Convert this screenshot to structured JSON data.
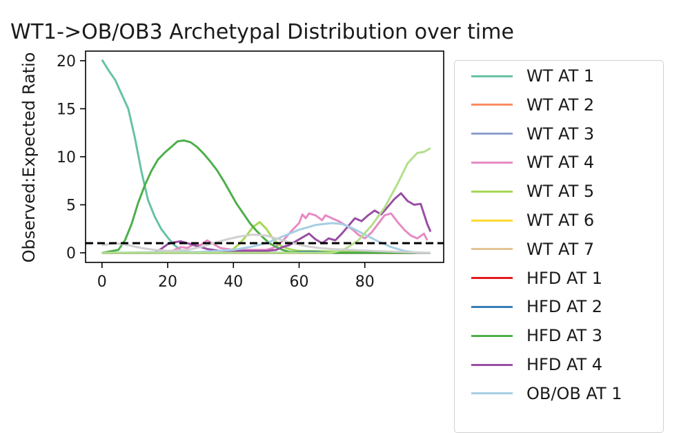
{
  "chart_data": {
    "type": "line",
    "title": "WT1->OB/OB3 Archetypal Distribution over time",
    "xlabel": "",
    "ylabel": "Observed:Expected Ratio",
    "xlim": [
      -5,
      104
    ],
    "ylim": [
      -1,
      21
    ],
    "xticks": [
      0,
      20,
      40,
      60,
      80
    ],
    "yticks": [
      0,
      5,
      10,
      15,
      20
    ],
    "reference_line": {
      "y": 1,
      "style": "dashed",
      "color": "#000000"
    },
    "legend_position": "outside right",
    "x_step": 1,
    "series": [
      {
        "name": "WT AT 1",
        "color": "#66c2a5",
        "points": [
          [
            0,
            20.1
          ],
          [
            2,
            19
          ],
          [
            4,
            18
          ],
          [
            6,
            16.5
          ],
          [
            8,
            15
          ],
          [
            10,
            12
          ],
          [
            12,
            8.5
          ],
          [
            14,
            5.5
          ],
          [
            16,
            3.8
          ],
          [
            18,
            2.5
          ],
          [
            20,
            1.6
          ],
          [
            22,
            0.8
          ],
          [
            24,
            0.3
          ],
          [
            26,
            0.1
          ],
          [
            30,
            0
          ],
          [
            100,
            0
          ]
        ]
      },
      {
        "name": "WT AT 2",
        "color": "#fc8d62",
        "points": [
          [
            0,
            0
          ],
          [
            100,
            0
          ]
        ]
      },
      {
        "name": "WT AT 3",
        "color": "#8da0cb",
        "points": [
          [
            0,
            0
          ],
          [
            100,
            0
          ]
        ]
      },
      {
        "name": "WT AT 4",
        "color": "#e78ac3",
        "points": [
          [
            0,
            0
          ],
          [
            20,
            0
          ],
          [
            22,
            0.3
          ],
          [
            24,
            0.6
          ],
          [
            26,
            0.5
          ],
          [
            28,
            0.9
          ],
          [
            30,
            0.8
          ],
          [
            32,
            1.3
          ],
          [
            34,
            0.9
          ],
          [
            36,
            0.5
          ],
          [
            38,
            0.4
          ],
          [
            40,
            0.3
          ],
          [
            50,
            0.3
          ],
          [
            52,
            0.5
          ],
          [
            54,
            0.9
          ],
          [
            56,
            1.6
          ],
          [
            58,
            2.4
          ],
          [
            60,
            3.1
          ],
          [
            61,
            4.0
          ],
          [
            62,
            3.6
          ],
          [
            63,
            4.1
          ],
          [
            65,
            3.9
          ],
          [
            67,
            3.4
          ],
          [
            68,
            3.9
          ],
          [
            70,
            3.6
          ],
          [
            72,
            3.3
          ],
          [
            74,
            2.9
          ],
          [
            76,
            2.5
          ],
          [
            78,
            1.9
          ],
          [
            80,
            1.5
          ],
          [
            82,
            2.1
          ],
          [
            84,
            3.0
          ],
          [
            86,
            3.9
          ],
          [
            88,
            4.1
          ],
          [
            90,
            3.2
          ],
          [
            92,
            2.4
          ],
          [
            94,
            1.8
          ],
          [
            96,
            1.5
          ],
          [
            98,
            2.0
          ],
          [
            99,
            1.3
          ]
        ]
      },
      {
        "name": "WT AT 5",
        "color": "#a6d854",
        "points": [
          [
            0,
            0
          ],
          [
            38,
            0
          ],
          [
            40,
            0.4
          ],
          [
            42,
            1.0
          ],
          [
            44,
            1.8
          ],
          [
            46,
            2.7
          ],
          [
            48,
            3.2
          ],
          [
            50,
            2.5
          ],
          [
            52,
            1.5
          ],
          [
            54,
            0.8
          ],
          [
            56,
            0.5
          ],
          [
            58,
            0.3
          ],
          [
            60,
            0.2
          ],
          [
            100,
            0
          ]
        ]
      },
      {
        "name": "WT AT 6",
        "color": "#ffd92f",
        "points": [
          [
            0,
            0
          ],
          [
            100,
            0
          ]
        ]
      },
      {
        "name": "WT AT 7",
        "color": "#e5c494",
        "points": [
          [
            0,
            0
          ],
          [
            100,
            0
          ]
        ]
      },
      {
        "name": "HFD AT 1",
        "color": "#e41a1c",
        "points": [
          [
            0,
            0
          ],
          [
            100,
            0
          ]
        ]
      },
      {
        "name": "HFD AT 2",
        "color": "#377eb8",
        "points": [
          [
            0,
            0
          ],
          [
            55,
            0
          ],
          [
            60,
            0.1
          ],
          [
            65,
            0.1
          ],
          [
            70,
            0
          ],
          [
            80,
            0
          ],
          [
            85,
            0.1
          ],
          [
            90,
            0
          ],
          [
            100,
            0
          ]
        ]
      },
      {
        "name": "HFD AT 3",
        "color": "#4daf4a",
        "points": [
          [
            0,
            0
          ],
          [
            5,
            0.3
          ],
          [
            7,
            1.3
          ],
          [
            9,
            3.0
          ],
          [
            11,
            5.2
          ],
          [
            13,
            7.0
          ],
          [
            15,
            8.5
          ],
          [
            17,
            9.7
          ],
          [
            19,
            10.4
          ],
          [
            21,
            11.0
          ],
          [
            23,
            11.6
          ],
          [
            25,
            11.7
          ],
          [
            27,
            11.5
          ],
          [
            29,
            11.0
          ],
          [
            31,
            10.3
          ],
          [
            33,
            9.5
          ],
          [
            35,
            8.6
          ],
          [
            37,
            7.5
          ],
          [
            39,
            6.3
          ],
          [
            41,
            5.1
          ],
          [
            43,
            4.1
          ],
          [
            45,
            3.1
          ],
          [
            47,
            2.3
          ],
          [
            49,
            1.6
          ],
          [
            51,
            1.0
          ],
          [
            53,
            0.6
          ],
          [
            55,
            0.3
          ],
          [
            57,
            0.1
          ],
          [
            60,
            0
          ],
          [
            100,
            0
          ]
        ]
      },
      {
        "name": "HFD AT 4",
        "color": "#984ea3",
        "points": [
          [
            0,
            0
          ],
          [
            16,
            0
          ],
          [
            18,
            0.4
          ],
          [
            20,
            0.9
          ],
          [
            22,
            1.1
          ],
          [
            24,
            1.2
          ],
          [
            26,
            1.0
          ],
          [
            28,
            0.8
          ],
          [
            30,
            0.6
          ],
          [
            32,
            0.4
          ],
          [
            36,
            0.2
          ],
          [
            50,
            0.2
          ],
          [
            53,
            0.3
          ],
          [
            55,
            0.6
          ],
          [
            57,
            0.8
          ],
          [
            59,
            1.2
          ],
          [
            61,
            1.6
          ],
          [
            63,
            2.0
          ],
          [
            65,
            1.4
          ],
          [
            67,
            1.0
          ],
          [
            69,
            1.5
          ],
          [
            71,
            1.3
          ],
          [
            73,
            2.0
          ],
          [
            75,
            2.8
          ],
          [
            77,
            3.6
          ],
          [
            79,
            3.3
          ],
          [
            81,
            3.9
          ],
          [
            83,
            4.4
          ],
          [
            85,
            4.0
          ],
          [
            87,
            4.8
          ],
          [
            89,
            5.6
          ],
          [
            91,
            6.2
          ],
          [
            93,
            5.4
          ],
          [
            95,
            5.0
          ],
          [
            97,
            5.1
          ],
          [
            99,
            3.0
          ],
          [
            100,
            2.2
          ]
        ]
      },
      {
        "name": "OB/OB AT 1",
        "color": "#a6cee3",
        "points": [
          [
            0,
            0
          ],
          [
            30,
            0.1
          ],
          [
            40,
            0.3
          ],
          [
            45,
            0.6
          ],
          [
            50,
            1.0
          ],
          [
            55,
            1.7
          ],
          [
            60,
            2.4
          ],
          [
            65,
            2.9
          ],
          [
            70,
            3.1
          ],
          [
            73,
            3.0
          ],
          [
            76,
            2.6
          ],
          [
            80,
            1.9
          ],
          [
            84,
            1.2
          ],
          [
            88,
            0.6
          ],
          [
            92,
            0.2
          ],
          [
            96,
            0
          ],
          [
            100,
            0
          ]
        ]
      },
      {
        "name": "",
        "color": "#b2df8a",
        "points": [
          [
            0,
            0
          ],
          [
            70,
            0
          ],
          [
            74,
            0.4
          ],
          [
            78,
            1.3
          ],
          [
            82,
            2.8
          ],
          [
            86,
            4.7
          ],
          [
            90,
            7.2
          ],
          [
            93,
            9.3
          ],
          [
            96,
            10.4
          ],
          [
            98,
            10.5
          ],
          [
            100,
            10.9
          ]
        ]
      },
      {
        "name": "",
        "color": "#d0d0d0",
        "points": [
          [
            0,
            0.8
          ],
          [
            4,
            1.0
          ],
          [
            8,
            0.8
          ],
          [
            12,
            0.5
          ],
          [
            16,
            0.3
          ],
          [
            20,
            0.2
          ],
          [
            26,
            0.3
          ],
          [
            30,
            0.6
          ],
          [
            34,
            1.0
          ],
          [
            38,
            1.4
          ],
          [
            42,
            1.7
          ],
          [
            46,
            1.9
          ],
          [
            50,
            1.8
          ],
          [
            54,
            1.4
          ],
          [
            58,
            1.0
          ],
          [
            62,
            0.7
          ],
          [
            66,
            0.5
          ],
          [
            70,
            0.4
          ],
          [
            76,
            0.3
          ],
          [
            82,
            0.2
          ],
          [
            90,
            0.1
          ],
          [
            100,
            0
          ]
        ]
      }
    ]
  }
}
